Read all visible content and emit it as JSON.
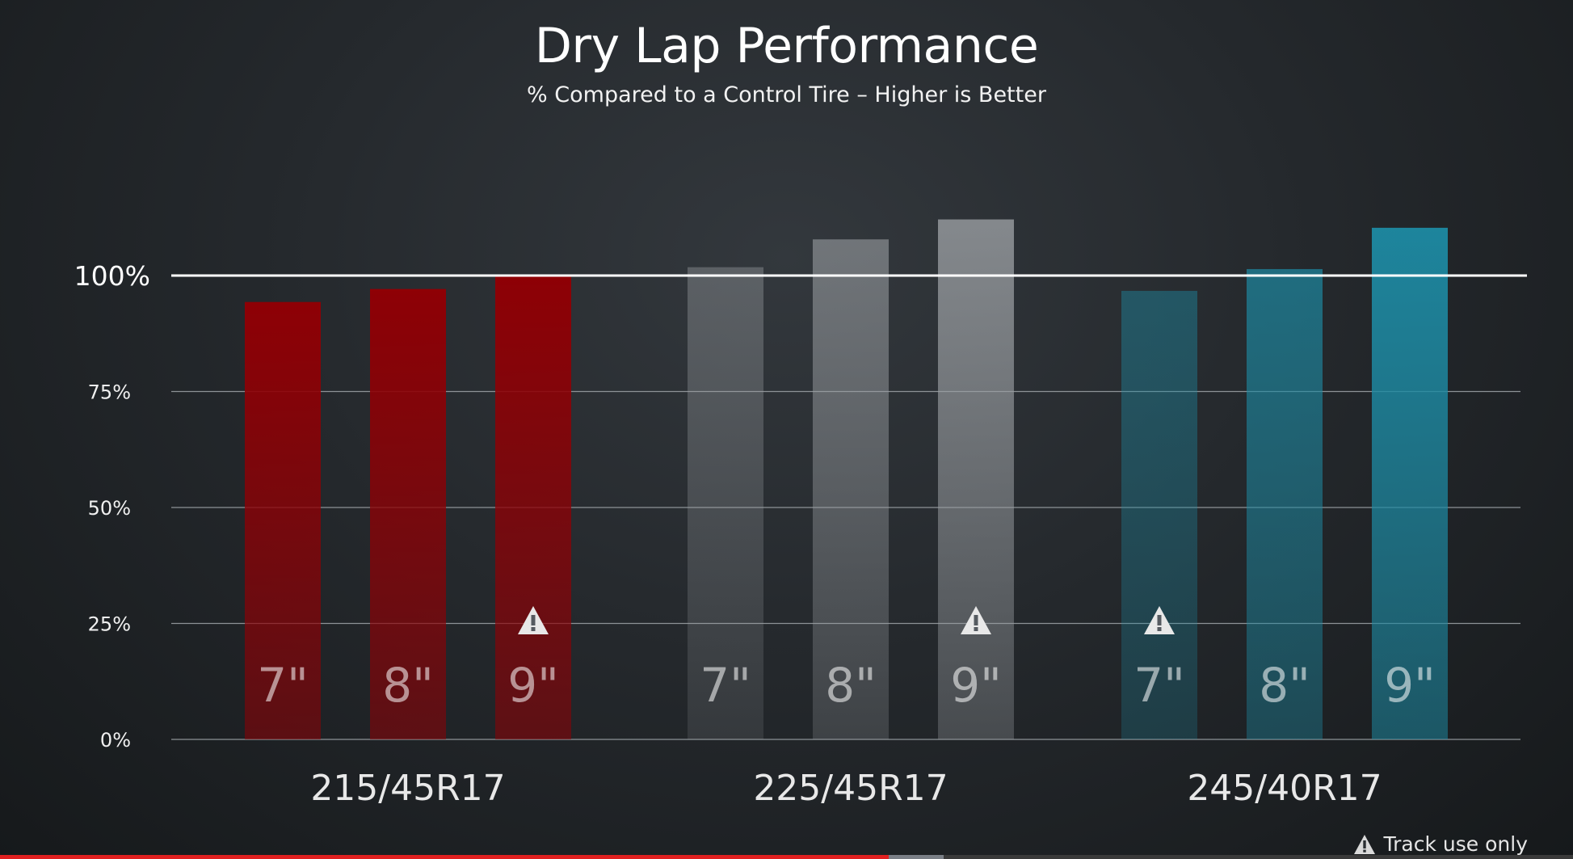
{
  "chart_data": {
    "type": "bar",
    "title": "Dry Lap Performance",
    "subtitle": "% Compared to a Control Tire – Higher is Better",
    "ylim": [
      0,
      100
    ],
    "yticks": [
      "0%",
      "25%",
      "50%",
      "75%",
      "100%"
    ],
    "reference_line": {
      "value": 100,
      "label": "100%"
    },
    "groups": [
      {
        "name": "215/45R17",
        "color": "#8e0005",
        "bars": [
          {
            "label": "7\"",
            "value": 94.3,
            "warning": false
          },
          {
            "label": "8\"",
            "value": 97.1,
            "warning": false
          },
          {
            "label": "9\"",
            "value": 100.2,
            "warning": true
          }
        ]
      },
      {
        "name": "225/45R17",
        "color": "#9a9ea2",
        "bars": [
          {
            "label": "7\"",
            "value": 101.8,
            "warning": false
          },
          {
            "label": "8\"",
            "value": 107.8,
            "warning": false
          },
          {
            "label": "9\"",
            "value": 112.1,
            "warning": true
          }
        ]
      },
      {
        "name": "245/40R17",
        "color": "#1d8aa3",
        "bars": [
          {
            "label": "7\"",
            "value": 96.7,
            "warning": true
          },
          {
            "label": "8\"",
            "value": 101.4,
            "warning": false
          },
          {
            "label": "9\"",
            "value": 110.3,
            "warning": false
          }
        ]
      }
    ],
    "legend_note": "Track use only"
  },
  "video": {
    "progress": 0.565,
    "buffered": 0.6
  }
}
